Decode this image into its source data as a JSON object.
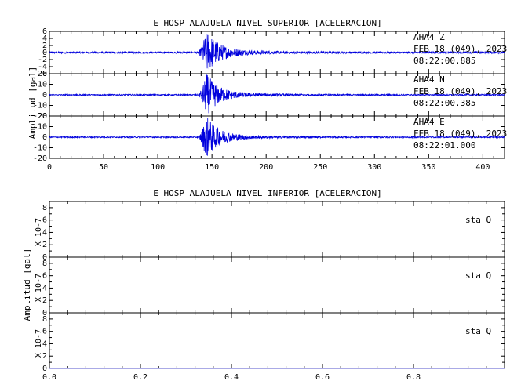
{
  "chart_data": [
    {
      "type": "line",
      "title": "E HOSP ALAJUELA NIVEL SUPERIOR [ACELERACION]",
      "ylabel": "Amplitud [gal]",
      "xlim": [
        0,
        420
      ],
      "x_ticks": [
        "0",
        "50",
        "100",
        "150",
        "200",
        "250",
        "300",
        "350",
        "400"
      ],
      "series_color": "#0000dd",
      "grid": false,
      "legend": "none",
      "signal": {
        "onset_x": 138,
        "peak_x": 145,
        "decay_end_x": 240
      },
      "series": [
        {
          "station": "AHA4",
          "component": "Z",
          "date": "FEB 18 (049), 2023",
          "time": "08:22:00.885",
          "ylim": [
            -6,
            6
          ],
          "yticks": [
            "6",
            "4",
            "2",
            "0",
            "-2",
            "-4",
            "-6"
          ],
          "peak_amplitude": 6,
          "noise_amplitude": 0.25
        },
        {
          "station": "AHA4",
          "component": "N",
          "date": "FEB 18 (049), 2023",
          "time": "08:22:00.385",
          "ylim": [
            -20,
            20
          ],
          "yticks": [
            "20",
            "10",
            "0",
            "-10",
            "-20"
          ],
          "peak_amplitude": 19,
          "noise_amplitude": 0.6
        },
        {
          "station": "AHA4",
          "component": "E",
          "date": "FEB 18 (049), 2023",
          "time": "08:22:01.000",
          "ylim": [
            -20,
            20
          ],
          "yticks": [
            "20",
            "10",
            "0",
            "-10",
            "-20"
          ],
          "peak_amplitude": 19,
          "noise_amplitude": 0.6
        }
      ]
    },
    {
      "type": "line",
      "title": "E HOSP ALAJUELA NIVEL INFERIOR [ACELERACION]",
      "ylabel": "Amplitud [gal]",
      "xlim": [
        0,
        1
      ],
      "x_ticks": [
        "0.0",
        "0.2",
        "0.4",
        "0.6",
        "0.8"
      ],
      "scale_label": "X 10-7",
      "series_color": "#5555cc",
      "grid": false,
      "legend": "none",
      "series": [
        {
          "station": "sta",
          "component": "Q",
          "ylim": [
            0,
            9
          ],
          "yticks": [
            "8",
            "6",
            "4",
            "2",
            "0"
          ],
          "values": [
            0,
            0
          ]
        },
        {
          "station": "sta",
          "component": "Q",
          "ylim": [
            0,
            9
          ],
          "yticks": [
            "8",
            "6",
            "4",
            "2",
            "0"
          ],
          "values": [
            0,
            0
          ]
        },
        {
          "station": "sta",
          "component": "Q",
          "ylim": [
            0,
            9
          ],
          "yticks": [
            "8",
            "6",
            "4",
            "2",
            "0"
          ],
          "values": [
            0,
            0
          ]
        }
      ]
    }
  ]
}
